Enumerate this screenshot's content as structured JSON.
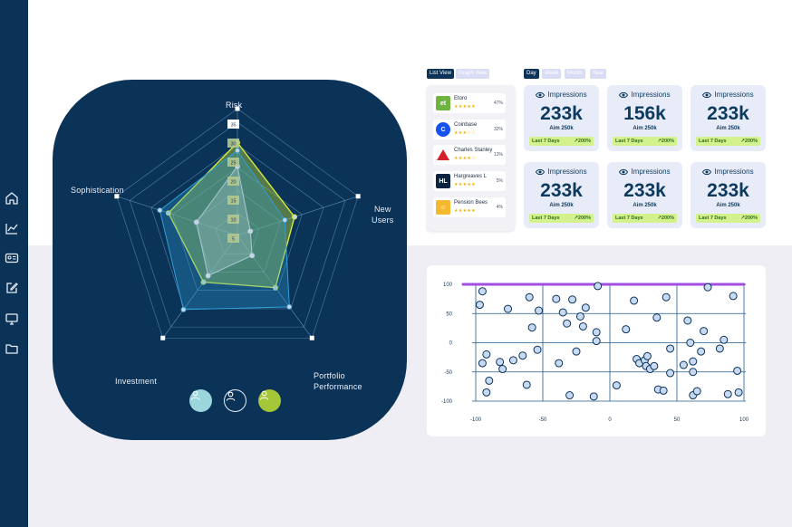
{
  "sidebar": {
    "items": [
      {
        "icon": "home-icon"
      },
      {
        "icon": "trend-chart-icon"
      },
      {
        "icon": "id-card-icon"
      },
      {
        "icon": "edit-icon"
      },
      {
        "icon": "monitor-icon"
      },
      {
        "icon": "folder-icon"
      }
    ]
  },
  "radar": {
    "axes": [
      "Risk",
      "New Users",
      "Portfolio Performance",
      "Investment",
      "Sophistication"
    ],
    "axis_label_lines": {
      "risk": "Risk",
      "new_users_1": "New",
      "new_users_2": "Users",
      "portfolio_1": "Portfolio",
      "portfolio_2": "Performance",
      "investment": "Investment",
      "sophistication": "Sophistication"
    },
    "scale_labels": [
      "35",
      "30",
      "25",
      "20",
      "15",
      "10",
      "5"
    ],
    "series": [
      {
        "color": "#d7e93c",
        "values": [
          0.82,
          0.53,
          0.57,
          0.51,
          0.64
        ]
      },
      {
        "color": "#2f9fd6",
        "values": [
          0.75,
          0.44,
          0.78,
          0.81,
          0.72
        ]
      },
      {
        "color": "#a9c8d8",
        "values": [
          0.61,
          0.12,
          0.22,
          0.44,
          0.38
        ]
      }
    ],
    "users": [
      {
        "icon": "user-icon",
        "color": "#9bd6dd"
      },
      {
        "icon": "user-icon",
        "color": "#0b3358"
      },
      {
        "icon": "user-icon",
        "color": "#a4c639"
      }
    ]
  },
  "view_toggle": {
    "list": "List View",
    "graph": "Graph View"
  },
  "period_tabs": {
    "day": "Day",
    "week": "Week",
    "month": "Month",
    "year": "Year"
  },
  "brokers": [
    {
      "name": "Etoro",
      "rating": "★★★★★",
      "pct": "47%",
      "logo_color": "#6fb43f",
      "logo_text": "et"
    },
    {
      "name": "Coinbase",
      "rating": "★★★☆☆",
      "pct": "32%",
      "logo_color": "#1652f0",
      "logo_text": "C"
    },
    {
      "name": "Charles Stanley",
      "rating": "★★★★☆",
      "pct": "13%",
      "logo_color": "#ffffff",
      "logo_text": ""
    },
    {
      "name": "Hargreaves L",
      "rating": "★★★★★",
      "pct": "5%",
      "logo_color": "#0b2240",
      "logo_text": "HL"
    },
    {
      "name": "Pension Bees",
      "rating": "★★★★★",
      "pct": "4%",
      "logo_color": "#f5b82e",
      "logo_text": "☺"
    }
  ],
  "cards": [
    {
      "title": "Impressions",
      "value": "233k",
      "aim": "Aim 250k",
      "period": "Last 7 Days",
      "change": "200%"
    },
    {
      "title": "Impressions",
      "value": "156k",
      "aim": "Aim 250k",
      "period": "Last 7 Days",
      "change": "200%"
    },
    {
      "title": "Impressions",
      "value": "233k",
      "aim": "Aim 250k",
      "period": "Last 7 Days",
      "change": "200%"
    },
    {
      "title": "Impressions",
      "value": "233k",
      "aim": "Aim 250k",
      "period": "Last 7 Days",
      "change": "200%"
    },
    {
      "title": "Impressions",
      "value": "233k",
      "aim": "Aim 250k",
      "period": "Last 7 Days",
      "change": "200%"
    },
    {
      "title": "Impressions",
      "value": "233k",
      "aim": "Aim 250k",
      "period": "Last 7 Days",
      "change": "200%"
    }
  ],
  "chart_data": {
    "type": "scatter",
    "xlim": [
      -100,
      100
    ],
    "ylim": [
      -100,
      100
    ],
    "x_ticks": [
      "-100",
      "-50",
      "0",
      "50",
      "100"
    ],
    "y_ticks": [
      "100",
      "50",
      "0",
      "-50",
      "-100"
    ],
    "reference_line": {
      "y": 100,
      "color": "#a24ee0"
    },
    "point_color": "#c8daf3",
    "points": [
      [
        -95,
        88
      ],
      [
        -97,
        65
      ],
      [
        -95,
        -35
      ],
      [
        -92,
        -85
      ],
      [
        -90,
        -65
      ],
      [
        -92,
        -20
      ],
      [
        -82,
        -33
      ],
      [
        -80,
        -45
      ],
      [
        -76,
        58
      ],
      [
        -72,
        -30
      ],
      [
        -65,
        -22
      ],
      [
        -62,
        -72
      ],
      [
        -60,
        78
      ],
      [
        -58,
        26
      ],
      [
        -54,
        -12
      ],
      [
        -53,
        55
      ],
      [
        -40,
        75
      ],
      [
        -38,
        -35
      ],
      [
        -35,
        52
      ],
      [
        -32,
        33
      ],
      [
        -30,
        -90
      ],
      [
        -28,
        74
      ],
      [
        -25,
        -15
      ],
      [
        -22,
        45
      ],
      [
        -20,
        28
      ],
      [
        -18,
        60
      ],
      [
        -12,
        -92
      ],
      [
        -10,
        3
      ],
      [
        -10,
        18
      ],
      [
        -9,
        97
      ],
      [
        5,
        -73
      ],
      [
        12,
        23
      ],
      [
        18,
        72
      ],
      [
        20,
        -28
      ],
      [
        22,
        -35
      ],
      [
        26,
        -30
      ],
      [
        27,
        -40
      ],
      [
        28,
        -23
      ],
      [
        30,
        -45
      ],
      [
        33,
        -40
      ],
      [
        35,
        43
      ],
      [
        36,
        -80
      ],
      [
        40,
        -82
      ],
      [
        42,
        78
      ],
      [
        45,
        -52
      ],
      [
        45,
        -10
      ],
      [
        55,
        -38
      ],
      [
        58,
        38
      ],
      [
        60,
        0
      ],
      [
        62,
        -32
      ],
      [
        62,
        -50
      ],
      [
        62,
        -90
      ],
      [
        65,
        -83
      ],
      [
        68,
        -15
      ],
      [
        70,
        20
      ],
      [
        73,
        95
      ],
      [
        82,
        -10
      ],
      [
        85,
        5
      ],
      [
        88,
        -88
      ],
      [
        92,
        80
      ],
      [
        95,
        -48
      ],
      [
        96,
        -85
      ]
    ]
  }
}
